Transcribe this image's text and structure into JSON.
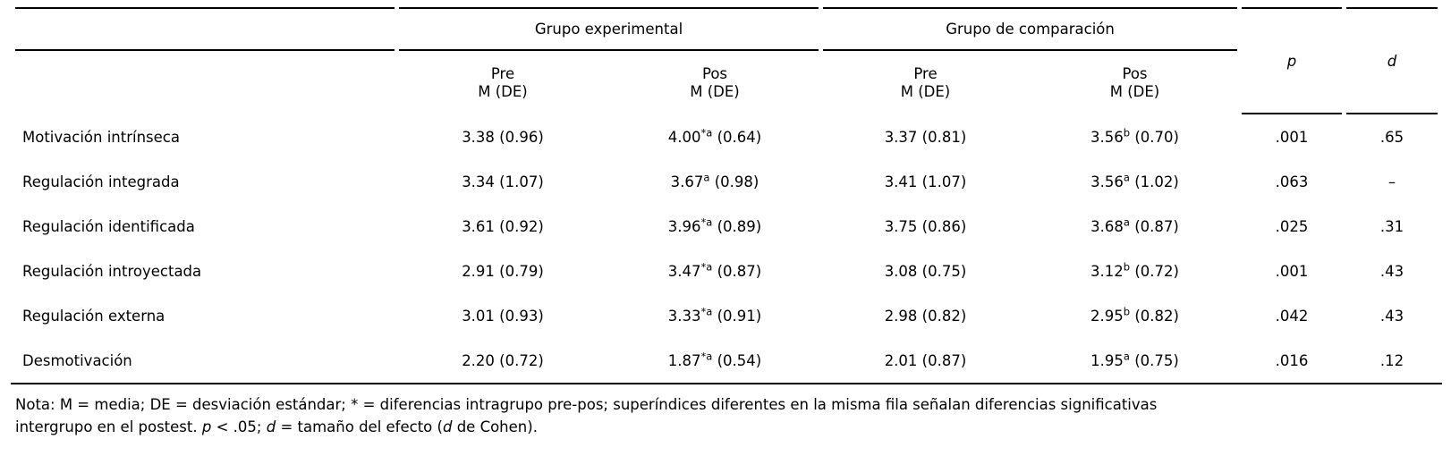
{
  "table": {
    "col_groups": {
      "experimental": "Grupo experimental",
      "comparison": "Grupo de comparación"
    },
    "sub_headers": [
      {
        "line1": "Pre",
        "line2": "M (DE)"
      },
      {
        "line1": "Pos",
        "line2": "M (DE)"
      },
      {
        "line1": "Pre",
        "line2": "M (DE)"
      },
      {
        "line1": "Pos",
        "line2": "M (DE)"
      }
    ],
    "stat_headers": {
      "p": "p",
      "d": "d"
    },
    "rows": [
      {
        "label": "Motivación intrínseca",
        "cells": [
          {
            "m": "3.38",
            "sup": "",
            "de": "(0.96)"
          },
          {
            "m": "4.00",
            "sup": "*a",
            "de": "(0.64)"
          },
          {
            "m": "3.37",
            "sup": "",
            "de": "(0.81)"
          },
          {
            "m": "3.56",
            "sup": "b",
            "de": "(0.70)"
          }
        ],
        "p": ".001",
        "d": ".65"
      },
      {
        "label": "Regulación integrada",
        "cells": [
          {
            "m": "3.34",
            "sup": "",
            "de": "(1.07)"
          },
          {
            "m": "3.67",
            "sup": "a",
            "de": "(0.98)"
          },
          {
            "m": "3.41",
            "sup": "",
            "de": "(1.07)"
          },
          {
            "m": "3.56",
            "sup": "a",
            "de": "(1.02)"
          }
        ],
        "p": ".063",
        "d": "–"
      },
      {
        "label": "Regulación identificada",
        "cells": [
          {
            "m": "3.61",
            "sup": "",
            "de": "(0.92)"
          },
          {
            "m": "3.96",
            "sup": "*a",
            "de": "(0.89)"
          },
          {
            "m": "3.75",
            "sup": "",
            "de": "(0.86)"
          },
          {
            "m": "3.68",
            "sup": "a",
            "de": "(0.87)"
          }
        ],
        "p": ".025",
        "d": ".31"
      },
      {
        "label": "Regulación introyectada",
        "cells": [
          {
            "m": "2.91",
            "sup": "",
            "de": "(0.79)"
          },
          {
            "m": "3.47",
            "sup": "*a",
            "de": "(0.87)"
          },
          {
            "m": "3.08",
            "sup": "",
            "de": "(0.75)"
          },
          {
            "m": "3.12",
            "sup": "b",
            "de": "(0.72)"
          }
        ],
        "p": ".001",
        "d": ".43"
      },
      {
        "label": "Regulación externa",
        "cells": [
          {
            "m": "3.01",
            "sup": "",
            "de": "(0.93)"
          },
          {
            "m": "3.33",
            "sup": "*a",
            "de": "(0.91)"
          },
          {
            "m": "2.98",
            "sup": "",
            "de": "(0.82)"
          },
          {
            "m": "2.95",
            "sup": "b",
            "de": "(0.82)"
          }
        ],
        "p": ".042",
        "d": ".43"
      },
      {
        "label": "Desmotivación",
        "cells": [
          {
            "m": "2.20",
            "sup": "",
            "de": "(0.72)"
          },
          {
            "m": "1.87",
            "sup": "*a",
            "de": "(0.54)"
          },
          {
            "m": "2.01",
            "sup": "",
            "de": "(0.87)"
          },
          {
            "m": "1.95",
            "sup": "a",
            "de": "(0.75)"
          }
        ],
        "p": ".016",
        "d": ".12"
      }
    ]
  },
  "note": {
    "lines": [
      {
        "segments": [
          {
            "text": "Nota: M = media; DE = desviación estándar; * = diferencias intragrupo pre-pos; superíndices diferentes en la misma fila señalan diferencias significativas",
            "italic": false
          }
        ]
      },
      {
        "segments": [
          {
            "text": "intergrupo en el postest. ",
            "italic": false
          },
          {
            "text": "p",
            "italic": true
          },
          {
            "text": " < .05; ",
            "italic": false
          },
          {
            "text": "d",
            "italic": true
          },
          {
            "text": " = tamaño del efecto (",
            "italic": false
          },
          {
            "text": "d",
            "italic": true
          },
          {
            "text": " de Cohen).",
            "italic": false
          }
        ]
      }
    ]
  },
  "colors": {
    "text": "#000000",
    "rule": "#000000",
    "background": "#ffffff"
  }
}
